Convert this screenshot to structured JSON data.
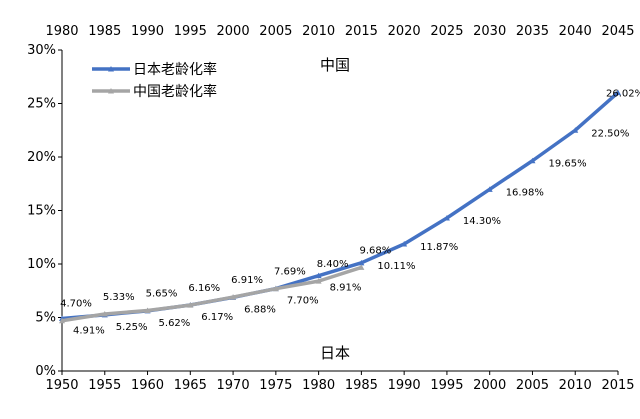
{
  "chart_data": {
    "type": "line",
    "x_bottom": [
      "1950",
      "1955",
      "1960",
      "1965",
      "1970",
      "1975",
      "1980",
      "1985",
      "1990",
      "1995",
      "2000",
      "2005",
      "2010",
      "2015"
    ],
    "x_top": [
      "1980",
      "1985",
      "1990",
      "1995",
      "2000",
      "2005",
      "2010",
      "2015",
      "2020",
      "2025",
      "2030",
      "2035",
      "2040",
      "2045"
    ],
    "ylim": [
      0,
      30
    ],
    "y_ticks": [
      "0%",
      "5%",
      "10%",
      "15%",
      "20%",
      "25%",
      "30%"
    ],
    "grid": false,
    "legend_position": "top-left",
    "annotations": {
      "top_axis": "中国",
      "bottom_axis": "日本"
    },
    "series": [
      {
        "name": "日本老龄化率",
        "axis": "bottom",
        "color": "#4472C4",
        "values": [
          4.91,
          5.25,
          5.62,
          6.17,
          6.88,
          7.7,
          8.91,
          10.11,
          11.87,
          14.3,
          16.98,
          19.65,
          22.5,
          26.02
        ],
        "labels": [
          "4.91%",
          "5.25%",
          "5.62%",
          "6.17%",
          "6.88%",
          "7.70%",
          "8.91%",
          "10.11%",
          "11.87%",
          "14.30%",
          "16.98%",
          "19.65%",
          "22.50%",
          "26.02%"
        ]
      },
      {
        "name": "中国老龄化率",
        "axis": "top",
        "color": "#A5A5A5",
        "values": [
          4.7,
          5.33,
          5.65,
          6.16,
          6.91,
          7.69,
          8.4,
          9.68
        ],
        "labels": [
          "4.70%",
          "5.33%",
          "5.65%",
          "6.16%",
          "6.91%",
          "7.69%",
          "8.40%",
          "9.68%"
        ]
      }
    ]
  }
}
